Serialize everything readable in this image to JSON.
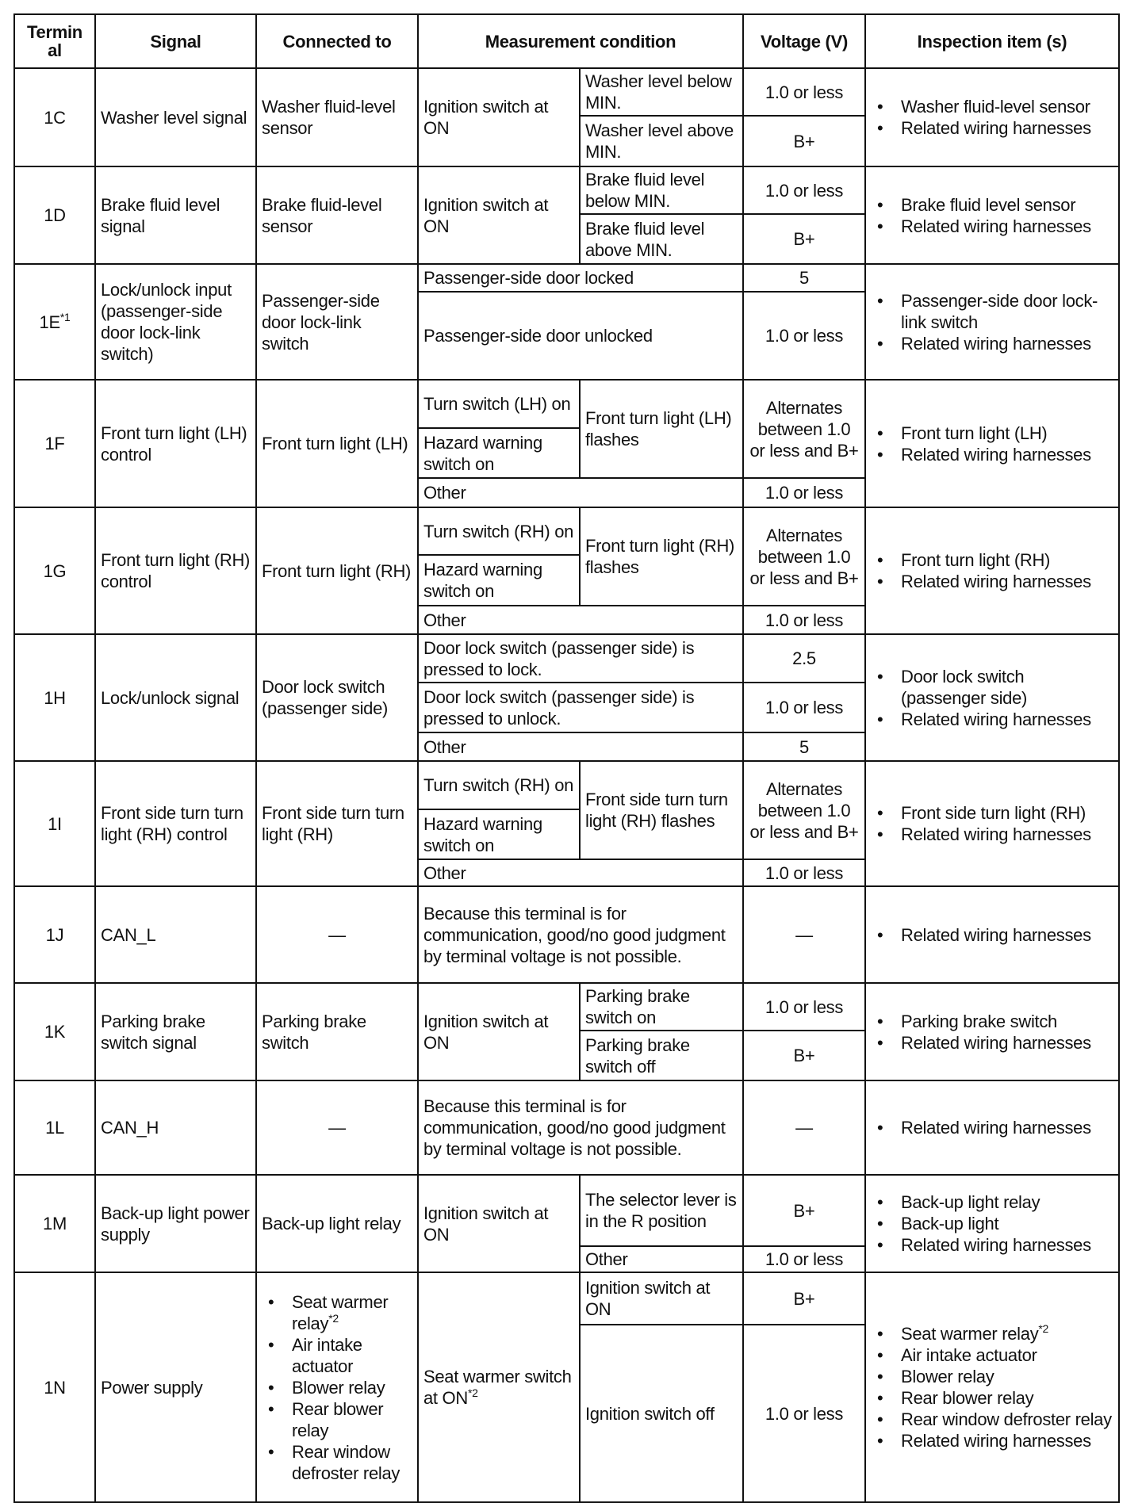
{
  "table": {
    "headers": [
      "Termin al",
      "Signal",
      "Connected to",
      "Measurement condition",
      "Voltage (V)",
      "Inspection item (s)"
    ],
    "rows": [
      {
        "h": 60,
        "cells": [
          {
            "t": "1C",
            "rs": 2,
            "c": 1
          },
          {
            "t": "Washer level signal",
            "rs": 2
          },
          {
            "t": "Washer fluid-level sensor",
            "rs": 2
          },
          {
            "t": "Ignition switch at ON",
            "rs": 2
          },
          {
            "t": "Washer level below MIN."
          },
          {
            "t": "1.0 or less",
            "c": 1
          },
          {
            "items": [
              {
                "t": "Washer fluid-level sensor"
              },
              {
                "t": "Related wiring harnesses"
              }
            ],
            "rs": 2
          }
        ]
      },
      {
        "h": 64,
        "cells": [
          {
            "t": "Washer level above MIN."
          },
          {
            "t": "B+",
            "c": 1
          }
        ]
      },
      {
        "h": 60,
        "cells": [
          {
            "t": "1D",
            "rs": 2,
            "c": 1
          },
          {
            "t": "Brake fluid level signal",
            "rs": 2
          },
          {
            "t": "Brake fluid-level sensor",
            "rs": 2
          },
          {
            "t": "Ignition switch at ON",
            "rs": 2
          },
          {
            "t": "Brake fluid level below MIN."
          },
          {
            "t": "1.0 or less",
            "c": 1
          },
          {
            "items": [
              {
                "t": "Brake fluid level sensor"
              },
              {
                "t": "Related wiring harnesses"
              }
            ],
            "rs": 2
          }
        ]
      },
      {
        "h": 63,
        "cells": [
          {
            "t": "Brake fluid level above MIN."
          },
          {
            "t": "B+",
            "c": 1
          }
        ]
      },
      {
        "h": 35,
        "cells": [
          {
            "t": "1E",
            "sup": "*1",
            "rs": 2,
            "c": 1
          },
          {
            "t": "Lock/unlock input (passenger-side door lock-link switch)",
            "rs": 2
          },
          {
            "t": "Passenger-side door lock-link switch",
            "rs": 2
          },
          {
            "t": "Passenger-side door locked",
            "cs": 2
          },
          {
            "t": "5",
            "c": 1
          },
          {
            "items": [
              {
                "t": "Passenger-side door lock-link switch"
              },
              {
                "t": "Related wiring harnesses"
              }
            ],
            "rs": 2
          }
        ]
      },
      {
        "h": 111,
        "cells": [
          {
            "t": "Passenger-side door unlocked",
            "cs": 2
          },
          {
            "t": "1.0 or less",
            "c": 1
          }
        ]
      },
      {
        "h": 61,
        "cells": [
          {
            "t": "1F",
            "rs": 3,
            "c": 1
          },
          {
            "t": "Front turn light (LH) control",
            "rs": 3
          },
          {
            "t": "Front turn light (LH)",
            "rs": 3
          },
          {
            "t": "Turn switch (LH) on"
          },
          {
            "t": "Front turn light (LH) flashes",
            "rs": 2
          },
          {
            "t": "Alternates between 1.0 or less and B+",
            "rs": 2,
            "c": 1
          },
          {
            "items": [
              {
                "t": "Front turn light (LH)"
              },
              {
                "t": "Related wiring harnesses"
              }
            ],
            "rs": 3
          }
        ]
      },
      {
        "h": 63,
        "cells": [
          {
            "t": "Hazard warning switch on"
          }
        ]
      },
      {
        "h": 37,
        "cells": [
          {
            "t": "Other",
            "cs": 2
          },
          {
            "t": "1.0 or less",
            "c": 1
          }
        ]
      },
      {
        "h": 60,
        "cells": [
          {
            "t": "1G",
            "rs": 3,
            "c": 1
          },
          {
            "t": "Front turn light (RH) control",
            "rs": 3
          },
          {
            "t": "Front turn light (RH)",
            "rs": 3
          },
          {
            "t": "Turn switch (RH) on"
          },
          {
            "t": "Front turn light (RH) flashes",
            "rs": 2
          },
          {
            "t": "Alternates between 1.0 or less and B+",
            "rs": 2,
            "c": 1
          },
          {
            "items": [
              {
                "t": "Front turn light (RH)"
              },
              {
                "t": "Related wiring harnesses"
              }
            ],
            "rs": 3
          }
        ]
      },
      {
        "h": 64,
        "cells": [
          {
            "t": "Hazard warning switch on"
          }
        ]
      },
      {
        "h": 36,
        "cells": [
          {
            "t": "Other",
            "cs": 2
          },
          {
            "t": "1.0 or less",
            "c": 1
          }
        ]
      },
      {
        "h": 61,
        "cells": [
          {
            "t": "1H",
            "rs": 3,
            "c": 1
          },
          {
            "t": "Lock/unlock signal",
            "rs": 3
          },
          {
            "t": "Door lock switch (passenger side)",
            "rs": 3
          },
          {
            "t": "Door lock switch (passenger side) is pressed to lock.",
            "cs": 2
          },
          {
            "t": "2.5",
            "c": 1
          },
          {
            "items": [
              {
                "t": "Door lock switch (passenger side)"
              },
              {
                "t": "Related wiring harnesses"
              }
            ],
            "rs": 3
          }
        ]
      },
      {
        "h": 63,
        "cells": [
          {
            "t": "Door lock switch (passenger side) is pressed to unlock.",
            "cs": 2
          },
          {
            "t": "1.0 or less",
            "c": 1
          }
        ]
      },
      {
        "h": 36,
        "cells": [
          {
            "t": "Other",
            "cs": 2
          },
          {
            "t": "5",
            "c": 1
          }
        ]
      },
      {
        "h": 61,
        "cells": [
          {
            "t": "1I",
            "rs": 3,
            "c": 1
          },
          {
            "t": "Front side turn turn light (RH) control",
            "rs": 3
          },
          {
            "t": "Front side turn turn light (RH)",
            "rs": 3
          },
          {
            "t": "Turn switch (RH) on"
          },
          {
            "t": "Front side turn turn light (RH) flashes",
            "rs": 2
          },
          {
            "t": "Alternates between 1.0 or less and B+",
            "rs": 2,
            "c": 1
          },
          {
            "items": [
              {
                "t": "Front side turn light (RH)"
              },
              {
                "t": "Related wiring harnesses"
              }
            ],
            "rs": 3
          }
        ]
      },
      {
        "h": 63,
        "cells": [
          {
            "t": "Hazard warning switch on"
          }
        ]
      },
      {
        "h": 34,
        "cells": [
          {
            "t": "Other",
            "cs": 2
          },
          {
            "t": "1.0 or less",
            "c": 1
          }
        ]
      },
      {
        "h": 122,
        "cells": [
          {
            "t": "1J",
            "c": 1
          },
          {
            "t": "CAN_L"
          },
          {
            "t": "—",
            "c": 1
          },
          {
            "t": "Because this terminal is for communication, good/no good judgment by terminal voltage is not possible.",
            "cs": 2
          },
          {
            "t": "—",
            "c": 1
          },
          {
            "items": [
              {
                "t": "Related wiring harnesses"
              }
            ]
          }
        ]
      },
      {
        "h": 58,
        "cells": [
          {
            "t": "1K",
            "rs": 2,
            "c": 1
          },
          {
            "t": "Parking brake switch signal",
            "rs": 2
          },
          {
            "t": "Parking brake switch",
            "rs": 2
          },
          {
            "t": "Ignition switch at ON",
            "rs": 2
          },
          {
            "t": "Parking brake switch on"
          },
          {
            "t": "1.0 or less",
            "c": 1
          },
          {
            "items": [
              {
                "t": "Parking brake switch"
              },
              {
                "t": "Related wiring harnesses"
              }
            ],
            "rs": 2
          }
        ]
      },
      {
        "h": 63,
        "cells": [
          {
            "t": "Parking brake switch off"
          },
          {
            "t": "B+",
            "c": 1
          }
        ]
      },
      {
        "h": 119,
        "cells": [
          {
            "t": "1L",
            "c": 1
          },
          {
            "t": "CAN_H"
          },
          {
            "t": "—",
            "c": 1
          },
          {
            "t": "Because this terminal is for communication, good/no good judgment by terminal voltage is not possible.",
            "cs": 2
          },
          {
            "t": "—",
            "c": 1
          },
          {
            "items": [
              {
                "t": "Related wiring harnesses"
              }
            ]
          }
        ]
      },
      {
        "h": 90,
        "cells": [
          {
            "t": "1M",
            "rs": 2,
            "c": 1
          },
          {
            "t": "Back-up light power supply",
            "rs": 2
          },
          {
            "t": "Back-up light relay",
            "rs": 2
          },
          {
            "t": "Ignition switch at ON",
            "rs": 2
          },
          {
            "t": "The selector lever is in the R position"
          },
          {
            "t": "B+",
            "c": 1
          },
          {
            "items": [
              {
                "t": "Back-up light relay"
              },
              {
                "t": "Back-up light"
              },
              {
                "t": "Related wiring harnesses"
              }
            ],
            "rs": 2
          }
        ]
      },
      {
        "h": 32,
        "cells": [
          {
            "t": "Other"
          },
          {
            "t": "1.0 or less",
            "c": 1
          }
        ]
      },
      {
        "h": 66,
        "cells": [
          {
            "t": "1N",
            "rs": 2,
            "c": 1
          },
          {
            "t": "Power supply",
            "rs": 2
          },
          {
            "items": [
              {
                "t": "Seat warmer relay",
                "sup": "*2"
              },
              {
                "t": "Air intake actuator"
              },
              {
                "t": "Blower relay"
              },
              {
                "t": "Rear blower relay"
              },
              {
                "t": "Rear window defroster relay"
              }
            ],
            "rs": 2
          },
          {
            "t": "Seat warmer switch at ON",
            "sup": "*2",
            "rs": 2
          },
          {
            "t": "Ignition switch at ON"
          },
          {
            "t": "B+",
            "c": 1
          },
          {
            "items": [
              {
                "t": "Seat warmer relay",
                "sup": "*2"
              },
              {
                "t": "Air intake actuator"
              },
              {
                "t": "Blower relay"
              },
              {
                "t": "Rear blower relay"
              },
              {
                "t": "Rear window defroster relay"
              },
              {
                "t": "Related wiring harnesses"
              }
            ],
            "rs": 2
          }
        ]
      },
      {
        "h": 224,
        "cells": [
          {
            "t": "Ignition switch off"
          },
          {
            "t": "1.0 or less",
            "c": 1
          }
        ]
      }
    ]
  }
}
